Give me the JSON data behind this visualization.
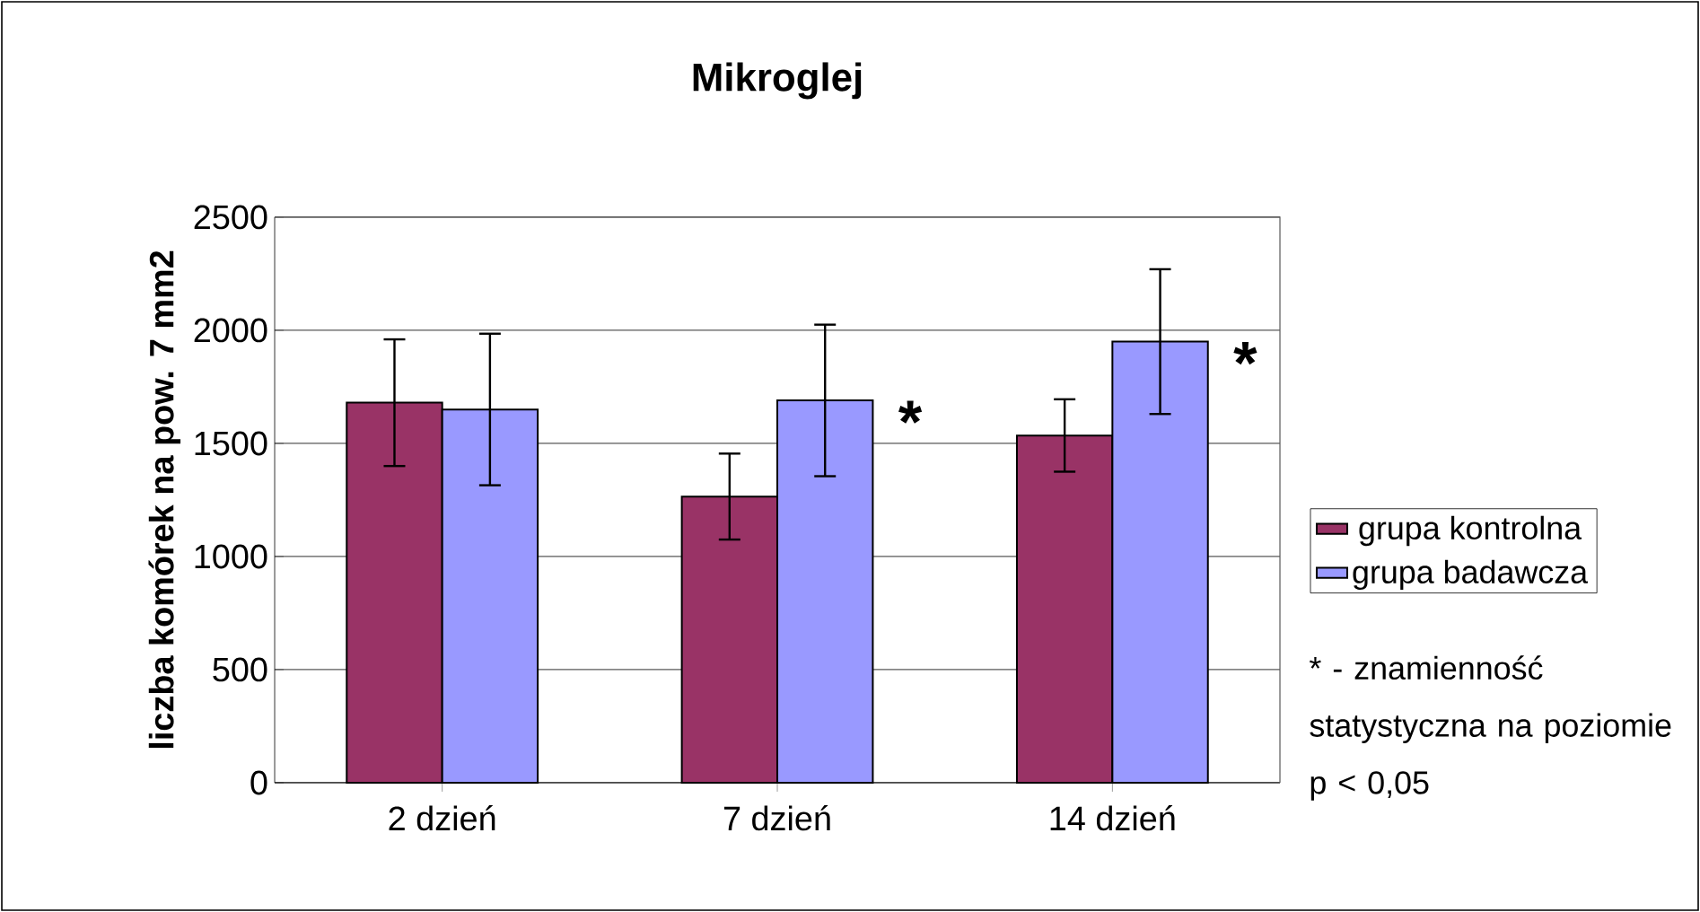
{
  "chart_data": {
    "type": "bar",
    "title": "Mikroglej",
    "ylabel": "liczba komórek na pow. 7 mm2",
    "categories": [
      "2 dzień",
      "7 dzień",
      "14 dzień"
    ],
    "series": [
      {
        "name": "grupa kontrolna",
        "color": "#993366",
        "values": [
          1680,
          1265,
          1535
        ],
        "errors": [
          280,
          190,
          160
        ]
      },
      {
        "name": "grupa badawcza",
        "color": "#9999ff",
        "values": [
          1650,
          1690,
          1950
        ],
        "errors": [
          335,
          335,
          320
        ]
      }
    ],
    "ylim": [
      0,
      2500
    ],
    "yticks": [
      0,
      500,
      1000,
      1500,
      2000,
      2500
    ],
    "grid": "y",
    "legend": "right",
    "annotations": [
      {
        "text": "*",
        "x": "7 dzień",
        "y": 1690
      },
      {
        "text": "*",
        "x": "14 dzień",
        "y": 1950
      },
      "* - znamienność statystyczna na poziomie p < 0,05"
    ]
  }
}
